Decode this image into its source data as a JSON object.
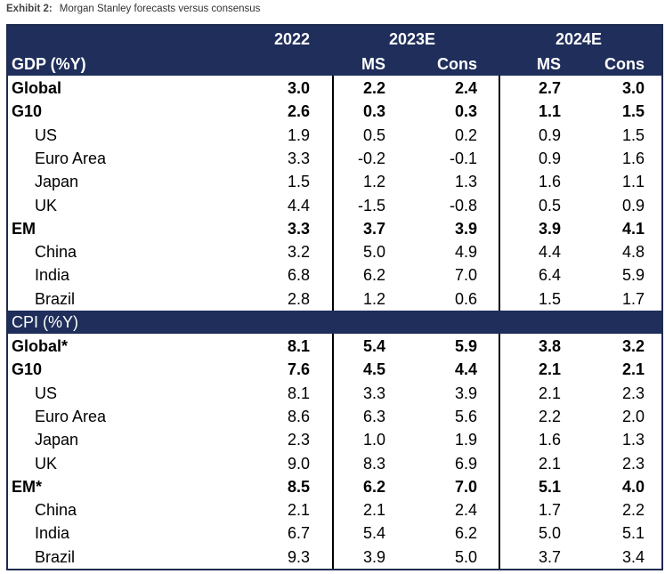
{
  "caption": {
    "label": "Exhibit 2:",
    "text": "Morgan Stanley forecasts versus consensus"
  },
  "header": {
    "years": [
      "2022",
      "2023E",
      "2024E"
    ],
    "sub": [
      "MS",
      "Cons",
      "MS",
      "Cons"
    ]
  },
  "sections": [
    {
      "title": "GDP (%Y)",
      "rows": [
        {
          "label": "Global",
          "bold": true,
          "v": [
            "3.0",
            "2.2",
            "2.4",
            "2.7",
            "3.0"
          ]
        },
        {
          "label": "G10",
          "bold": true,
          "v": [
            "2.6",
            "0.3",
            "0.3",
            "1.1",
            "1.5"
          ]
        },
        {
          "label": "US",
          "bold": false,
          "v": [
            "1.9",
            "0.5",
            "0.2",
            "0.9",
            "1.5"
          ]
        },
        {
          "label": "Euro Area",
          "bold": false,
          "v": [
            "3.3",
            "-0.2",
            "-0.1",
            "0.9",
            "1.6"
          ]
        },
        {
          "label": "Japan",
          "bold": false,
          "v": [
            "1.5",
            "1.2",
            "1.3",
            "1.6",
            "1.1"
          ]
        },
        {
          "label": "UK",
          "bold": false,
          "v": [
            "4.4",
            "-1.5",
            "-0.8",
            "0.5",
            "0.9"
          ]
        },
        {
          "label": "EM",
          "bold": true,
          "v": [
            "3.3",
            "3.7",
            "3.9",
            "3.9",
            "4.1"
          ]
        },
        {
          "label": "China",
          "bold": false,
          "v": [
            "3.2",
            "5.0",
            "4.9",
            "4.4",
            "4.8"
          ]
        },
        {
          "label": "India",
          "bold": false,
          "v": [
            "6.8",
            "6.2",
            "7.0",
            "6.4",
            "5.9"
          ]
        },
        {
          "label": "Brazil",
          "bold": false,
          "v": [
            "2.8",
            "1.2",
            "0.6",
            "1.5",
            "1.7"
          ]
        }
      ]
    },
    {
      "title": "CPI (%Y)",
      "rows": [
        {
          "label": "Global*",
          "bold": true,
          "v": [
            "8.1",
            "5.4",
            "5.9",
            "3.8",
            "3.2"
          ]
        },
        {
          "label": "G10",
          "bold": true,
          "v": [
            "7.6",
            "4.5",
            "4.4",
            "2.1",
            "2.1"
          ]
        },
        {
          "label": "US",
          "bold": false,
          "v": [
            "8.1",
            "3.3",
            "3.9",
            "2.1",
            "2.3"
          ]
        },
        {
          "label": "Euro Area",
          "bold": false,
          "v": [
            "8.6",
            "6.3",
            "5.6",
            "2.2",
            "2.0"
          ]
        },
        {
          "label": "Japan",
          "bold": false,
          "v": [
            "2.3",
            "1.0",
            "1.9",
            "1.6",
            "1.3"
          ]
        },
        {
          "label": "UK",
          "bold": false,
          "v": [
            "9.0",
            "8.3",
            "6.9",
            "2.1",
            "2.3"
          ]
        },
        {
          "label": "EM*",
          "bold": true,
          "v": [
            "8.5",
            "6.2",
            "7.0",
            "5.1",
            "4.0"
          ]
        },
        {
          "label": "China",
          "bold": false,
          "v": [
            "2.1",
            "2.1",
            "2.4",
            "1.7",
            "2.2"
          ]
        },
        {
          "label": "India",
          "bold": false,
          "v": [
            "6.7",
            "5.4",
            "6.2",
            "5.0",
            "5.1"
          ]
        },
        {
          "label": "Brazil",
          "bold": false,
          "v": [
            "9.3",
            "3.9",
            "5.0",
            "3.7",
            "3.4"
          ]
        }
      ]
    }
  ]
}
